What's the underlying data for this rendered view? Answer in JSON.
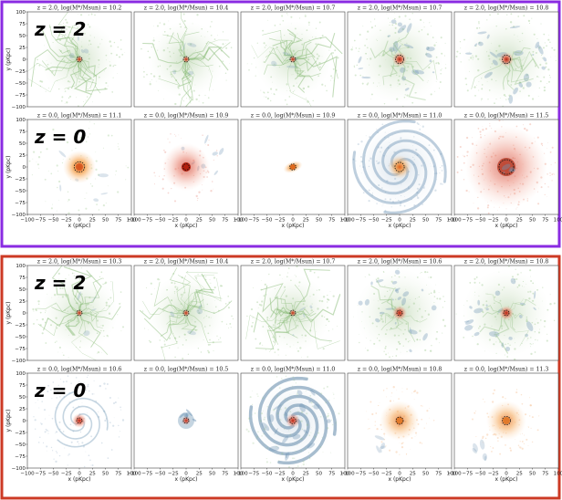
{
  "chart_data": {
    "type": "scatter",
    "title": "",
    "xlabel": "x (pKpc)",
    "ylabel": "y (pKpc)",
    "xlim": [
      -100,
      100
    ],
    "ylim": [
      -100,
      100
    ],
    "xticks": [
      "−100",
      "−75",
      "−50",
      "−25",
      "0",
      "25",
      "50",
      "75",
      "100"
    ],
    "yticks": [
      "100",
      "75",
      "50",
      "25",
      "0",
      "−25",
      "−50",
      "−75",
      "−100"
    ],
    "colors": {
      "frame_top": "#8a2be2",
      "frame_bottom": "#cc3a24",
      "gas": "#8fbf7f",
      "gas_blue": "#6f95b5",
      "stars_red": "#d6402a",
      "stars_orange": "#f08a2c",
      "halo_circle": "#111111"
    },
    "blocks": [
      {
        "rows": [
          {
            "z_label": "z = 2",
            "panels": [
              {
                "title": "z = 2.0, log(M*/Msun) = 10.2",
                "z": 2.0,
                "log_mstar": 10.2,
                "radius_kpc": 4,
                "style": "filament"
              },
              {
                "title": "z = 2.0, log(M*/Msun) = 10.4",
                "z": 2.0,
                "log_mstar": 10.4,
                "radius_kpc": 4,
                "style": "filament"
              },
              {
                "title": "z = 2.0, log(M*/Msun) = 10.7",
                "z": 2.0,
                "log_mstar": 10.7,
                "radius_kpc": 4,
                "style": "filament"
              },
              {
                "title": "z = 2.0, log(M*/Msun) = 10.7",
                "z": 2.0,
                "log_mstar": 10.7,
                "radius_kpc": 8,
                "style": "clumpy"
              },
              {
                "title": "z = 2.0, log(M*/Msun) = 10.8",
                "z": 2.0,
                "log_mstar": 10.8,
                "radius_kpc": 8,
                "style": "clumpy"
              }
            ]
          },
          {
            "z_label": "z = 0",
            "panels": [
              {
                "title": "z = 0.0, log(M*/Msun) = 11.1",
                "z": 0.0,
                "log_mstar": 11.1,
                "radius_kpc": 10,
                "style": "disk_orange"
              },
              {
                "title": "z = 0.0, log(M*/Msun) = 10.9",
                "z": 0.0,
                "log_mstar": 10.9,
                "radius_kpc": 6,
                "style": "red_diffuse"
              },
              {
                "title": "z = 0.0, log(M*/Msun) = 10.9",
                "z": 0.0,
                "log_mstar": 10.9,
                "radius_kpc": 6,
                "style": "orange_compact"
              },
              {
                "title": "z = 0.0, log(M*/Msun) = 11.0",
                "z": 0.0,
                "log_mstar": 11.0,
                "radius_kpc": 9,
                "style": "spiral"
              },
              {
                "title": "z = 0.0, log(M*/Msun) = 11.5",
                "z": 0.0,
                "log_mstar": 11.5,
                "radius_kpc": 14,
                "style": "elliptical_red"
              }
            ]
          }
        ]
      },
      {
        "rows": [
          {
            "z_label": "z = 2",
            "panels": [
              {
                "title": "z = 2.0, log(M*/Msun) = 10.3",
                "z": 2.0,
                "log_mstar": 10.3,
                "radius_kpc": 4,
                "style": "filament"
              },
              {
                "title": "z = 2.0, log(M*/Msun) = 10.4",
                "z": 2.0,
                "log_mstar": 10.4,
                "radius_kpc": 3,
                "style": "filament"
              },
              {
                "title": "z = 2.0, log(M*/Msun) = 10.7",
                "z": 2.0,
                "log_mstar": 10.7,
                "radius_kpc": 4,
                "style": "filament"
              },
              {
                "title": "z = 2.0, log(M*/Msun) = 10.6",
                "z": 2.0,
                "log_mstar": 10.6,
                "radius_kpc": 3,
                "style": "clumpy"
              },
              {
                "title": "z = 2.0, log(M*/Msun) = 10.8",
                "z": 2.0,
                "log_mstar": 10.8,
                "radius_kpc": 5,
                "style": "clumpy"
              }
            ]
          },
          {
            "z_label": "z = 0",
            "panels": [
              {
                "title": "z = 0.0, log(M*/Msun) = 10.6",
                "z": 0.0,
                "log_mstar": 10.6,
                "radius_kpc": 5,
                "style": "spiral_small"
              },
              {
                "title": "z = 0.0, log(M*/Msun) = 10.5",
                "z": 0.0,
                "log_mstar": 10.5,
                "radius_kpc": 4,
                "style": "compact_blue"
              },
              {
                "title": "z = 0.0, log(M*/Msun) = 11.0",
                "z": 0.0,
                "log_mstar": 11.0,
                "radius_kpc": 6,
                "style": "spiral_big"
              },
              {
                "title": "z = 0.0, log(M*/Msun) = 10.8",
                "z": 0.0,
                "log_mstar": 10.8,
                "radius_kpc": 7,
                "style": "orange_diffuse"
              },
              {
                "title": "z = 0.0, log(M*/Msun) = 11.3",
                "z": 0.0,
                "log_mstar": 11.3,
                "radius_kpc": 8,
                "style": "orange_diffuse"
              }
            ]
          }
        ]
      }
    ]
  }
}
